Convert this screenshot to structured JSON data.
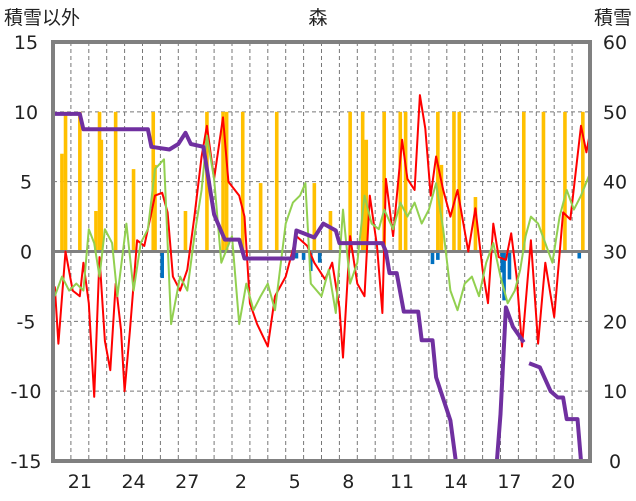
{
  "chart_data": {
    "type": "line",
    "title": "森",
    "ylabel_left": "積雪以外",
    "ylabel_right": "積雪",
    "ylim_left": [
      -15,
      15
    ],
    "ylim_right": [
      0,
      60
    ],
    "yticks_left": [
      "15",
      "10",
      "5",
      "0",
      "-5",
      "-10",
      "-15"
    ],
    "yticks_right": [
      "60",
      "50",
      "40",
      "30",
      "20",
      "10",
      "0"
    ],
    "xlim_days": [
      0,
      30
    ],
    "xtick_labels": [
      "21",
      "24",
      "27",
      "2",
      "5",
      "8",
      "11",
      "14",
      "17",
      "20"
    ],
    "xtick_days": [
      1.5,
      4.5,
      7.5,
      10.5,
      13.5,
      16.5,
      19.5,
      22.5,
      25.5,
      28.5
    ],
    "grid": "dashed, daily vertical, every 5 units horizontal",
    "colors": {
      "red": "#FF0000",
      "green": "#92D050",
      "orange": "#FFC000",
      "blue": "#0070C0",
      "purple": "#7030A0",
      "frame": "#808080"
    },
    "series": [
      {
        "name": "red",
        "axis": "left",
        "kind": "line",
        "color": "#FF0000",
        "points": [
          [
            0.1,
            -2.5
          ],
          [
            0.3,
            -6.6
          ],
          [
            0.7,
            0
          ],
          [
            1.1,
            -2.8
          ],
          [
            1.5,
            -3.2
          ],
          [
            1.7,
            -0.8
          ],
          [
            2.0,
            -3.7
          ],
          [
            2.3,
            -10.4
          ],
          [
            2.6,
            -0.4
          ],
          [
            2.9,
            -6.4
          ],
          [
            3.2,
            -8.5
          ],
          [
            3.5,
            -2.3
          ],
          [
            3.8,
            -5.6
          ],
          [
            4.0,
            -10
          ],
          [
            4.3,
            -5.6
          ],
          [
            4.7,
            0.8
          ],
          [
            5.1,
            0.4
          ],
          [
            5.7,
            4
          ],
          [
            6.1,
            4.2
          ],
          [
            6.4,
            2.8
          ],
          [
            6.7,
            -1.8
          ],
          [
            7.1,
            -2.8
          ],
          [
            7.5,
            -1.3
          ],
          [
            7.9,
            2.5
          ],
          [
            8.3,
            6.8
          ],
          [
            8.6,
            9
          ],
          [
            9.0,
            5.2
          ],
          [
            9.5,
            9.6
          ],
          [
            9.8,
            5
          ],
          [
            10.4,
            4
          ],
          [
            10.7,
            2.5
          ],
          [
            11.0,
            -3.7
          ],
          [
            11.4,
            -5.2
          ],
          [
            12.0,
            -6.8
          ],
          [
            12.4,
            -3.2
          ],
          [
            13.0,
            -1.8
          ],
          [
            13.6,
            1.1
          ],
          [
            14.2,
            0.4
          ],
          [
            14.6,
            -0.8
          ],
          [
            15.2,
            -2
          ],
          [
            15.6,
            -0.8
          ],
          [
            16.0,
            -4
          ],
          [
            16.2,
            -7.6
          ],
          [
            16.6,
            1.1
          ],
          [
            17.0,
            -2.3
          ],
          [
            17.4,
            -3.2
          ],
          [
            17.7,
            4
          ],
          [
            18.1,
            0.4
          ],
          [
            18.4,
            -4.4
          ],
          [
            18.6,
            5.2
          ],
          [
            19.0,
            1.1
          ],
          [
            19.5,
            8
          ],
          [
            19.8,
            5.2
          ],
          [
            20.2,
            4.4
          ],
          [
            20.5,
            11.2
          ],
          [
            20.8,
            8.8
          ],
          [
            21.1,
            4
          ],
          [
            21.4,
            6.8
          ],
          [
            21.8,
            4.4
          ],
          [
            22.2,
            2.5
          ],
          [
            22.6,
            4.4
          ],
          [
            23.2,
            0
          ],
          [
            23.6,
            3.1
          ],
          [
            24.0,
            -1.3
          ],
          [
            24.3,
            -3.7
          ],
          [
            24.6,
            2
          ],
          [
            24.9,
            -0.4
          ],
          [
            25.3,
            -0.6
          ],
          [
            25.6,
            1.3
          ],
          [
            25.9,
            -1.8
          ],
          [
            26.2,
            -6.8
          ],
          [
            26.7,
            0.8
          ],
          [
            27.1,
            -6.6
          ],
          [
            27.5,
            -0.8
          ],
          [
            28.0,
            -4.7
          ],
          [
            28.5,
            2.8
          ],
          [
            28.9,
            2.3
          ],
          [
            29.5,
            9
          ],
          [
            29.8,
            7.1
          ],
          [
            30.0,
            8.5
          ]
        ]
      },
      {
        "name": "green",
        "axis": "left",
        "kind": "line",
        "color": "#92D050",
        "points": [
          [
            0.1,
            -3.2
          ],
          [
            0.5,
            -1.8
          ],
          [
            0.9,
            -2.8
          ],
          [
            1.3,
            -2.3
          ],
          [
            1.7,
            -2.8
          ],
          [
            2.0,
            1.6
          ],
          [
            2.3,
            0.6
          ],
          [
            2.6,
            -1.8
          ],
          [
            2.9,
            1.6
          ],
          [
            3.3,
            0.6
          ],
          [
            3.6,
            -3.2
          ],
          [
            4.1,
            2
          ],
          [
            4.5,
            -2.8
          ],
          [
            4.9,
            0.6
          ],
          [
            5.3,
            1.6
          ],
          [
            5.7,
            5.9
          ],
          [
            6.2,
            6.6
          ],
          [
            6.6,
            -5.2
          ],
          [
            7.1,
            -1.8
          ],
          [
            7.5,
            -2.8
          ],
          [
            7.9,
            1.1
          ],
          [
            8.3,
            4.4
          ],
          [
            8.6,
            8.3
          ],
          [
            9.0,
            5.2
          ],
          [
            9.4,
            -0.8
          ],
          [
            10.0,
            1.1
          ],
          [
            10.4,
            -5.2
          ],
          [
            10.8,
            -2.3
          ],
          [
            11.2,
            -4.2
          ],
          [
            11.6,
            -3.2
          ],
          [
            12.0,
            -2.3
          ],
          [
            12.4,
            -4.2
          ],
          [
            13.0,
            2
          ],
          [
            13.4,
            3.5
          ],
          [
            13.8,
            4
          ],
          [
            14.1,
            4.9
          ],
          [
            14.4,
            -2.3
          ],
          [
            15.0,
            -3.2
          ],
          [
            15.4,
            -1.3
          ],
          [
            15.8,
            -4.4
          ],
          [
            16.2,
            3
          ],
          [
            16.6,
            -2.3
          ],
          [
            17.0,
            -0.8
          ],
          [
            17.4,
            4
          ],
          [
            17.8,
            2
          ],
          [
            18.2,
            1.6
          ],
          [
            18.5,
            3
          ],
          [
            19.0,
            1.6
          ],
          [
            19.4,
            3.5
          ],
          [
            19.8,
            2.5
          ],
          [
            20.2,
            3.5
          ],
          [
            20.6,
            2
          ],
          [
            21.0,
            3
          ],
          [
            21.4,
            4.9
          ],
          [
            21.8,
            1.6
          ],
          [
            22.2,
            -2.8
          ],
          [
            22.6,
            -4.2
          ],
          [
            23.0,
            -2.3
          ],
          [
            23.4,
            -1.8
          ],
          [
            23.8,
            -3.2
          ],
          [
            24.2,
            -0.8
          ],
          [
            24.6,
            0.6
          ],
          [
            25.0,
            -1.8
          ],
          [
            25.4,
            -3.7
          ],
          [
            25.8,
            -2.8
          ],
          [
            26.1,
            -1.3
          ],
          [
            26.4,
            1.1
          ],
          [
            26.7,
            2.5
          ],
          [
            27.1,
            2
          ],
          [
            27.5,
            0.6
          ],
          [
            27.9,
            -0.8
          ],
          [
            28.3,
            2.5
          ],
          [
            28.7,
            4.4
          ],
          [
            29.1,
            3
          ],
          [
            29.5,
            4
          ],
          [
            30.0,
            5.6
          ]
        ]
      },
      {
        "name": "purple",
        "axis": "right",
        "kind": "line",
        "color": "#7030A0",
        "segments": [
          [
            [
              0,
              49.7
            ],
            [
              1.5,
              49.7
            ],
            [
              1.7,
              47.5
            ],
            [
              5.3,
              47.5
            ],
            [
              5.5,
              45
            ],
            [
              6.5,
              44.6
            ],
            [
              7.0,
              45.4
            ],
            [
              7.4,
              47
            ],
            [
              7.7,
              45.4
            ],
            [
              8.4,
              45
            ],
            [
              9.0,
              35.3
            ],
            [
              9.6,
              31.7
            ],
            [
              10.4,
              31.7
            ],
            [
              10.7,
              29
            ],
            [
              13.4,
              29
            ],
            [
              13.6,
              33
            ],
            [
              14.6,
              32
            ],
            [
              15.1,
              34
            ],
            [
              15.8,
              33
            ],
            [
              16.0,
              31.2
            ],
            [
              18.4,
              31.2
            ],
            [
              18.6,
              30
            ],
            [
              18.8,
              26.9
            ],
            [
              19.2,
              26.9
            ],
            [
              19.6,
              21.4
            ],
            [
              20.4,
              21.4
            ],
            [
              20.6,
              17.3
            ],
            [
              21.2,
              17.3
            ],
            [
              21.4,
              12
            ],
            [
              22.2,
              5.8
            ],
            [
              22.5,
              0
            ],
            [
              24.8,
              0
            ],
            [
              25.0,
              6.7
            ],
            [
              25.3,
              22
            ],
            [
              25.7,
              19.2
            ],
            [
              26.3,
              17
            ]
          ],
          [
            [
              26.6,
              14
            ],
            [
              27.2,
              13.4
            ],
            [
              27.8,
              10
            ],
            [
              28.2,
              9.1
            ],
            [
              28.5,
              9.1
            ],
            [
              28.7,
              6
            ],
            [
              29.3,
              6
            ],
            [
              29.5,
              0
            ],
            [
              30,
              0
            ]
          ]
        ]
      },
      {
        "name": "orange",
        "axis": "left",
        "kind": "bar",
        "color": "#FFC000",
        "points": [
          [
            0.5,
            7
          ],
          [
            0.7,
            10
          ],
          [
            1.5,
            10
          ],
          [
            2.4,
            2.9
          ],
          [
            2.6,
            10
          ],
          [
            2.7,
            8
          ],
          [
            3.5,
            10
          ],
          [
            4.5,
            5.9
          ],
          [
            5.6,
            10
          ],
          [
            5.7,
            6.2
          ],
          [
            7.4,
            2.9
          ],
          [
            8.6,
            10
          ],
          [
            9.5,
            10
          ],
          [
            9.7,
            10
          ],
          [
            10.6,
            10
          ],
          [
            11.6,
            4.9
          ],
          [
            12.5,
            10
          ],
          [
            14.6,
            4.9
          ],
          [
            15.5,
            2.9
          ],
          [
            16.6,
            10
          ],
          [
            17.3,
            10
          ],
          [
            17.5,
            8
          ],
          [
            18.5,
            10
          ],
          [
            19.4,
            10
          ],
          [
            19.7,
            10
          ],
          [
            21.5,
            10
          ],
          [
            21.7,
            6.2
          ],
          [
            22.4,
            10
          ],
          [
            22.7,
            10
          ],
          [
            23.6,
            3.9
          ],
          [
            26.3,
            10
          ],
          [
            27.4,
            10
          ],
          [
            28.6,
            10
          ],
          [
            29.6,
            10
          ]
        ]
      },
      {
        "name": "blue",
        "axis": "left",
        "kind": "bar",
        "color": "#0070C0",
        "points": [
          [
            6.1,
            -1.9
          ],
          [
            13.6,
            -0.5
          ],
          [
            14.0,
            -0.6
          ],
          [
            14.4,
            -1.4
          ],
          [
            14.9,
            -0.8
          ],
          [
            21.2,
            -0.9
          ],
          [
            21.5,
            -0.6
          ],
          [
            25.1,
            -1.5
          ],
          [
            25.2,
            -3.5
          ],
          [
            25.5,
            -2
          ],
          [
            29.4,
            -0.5
          ]
        ]
      }
    ]
  }
}
